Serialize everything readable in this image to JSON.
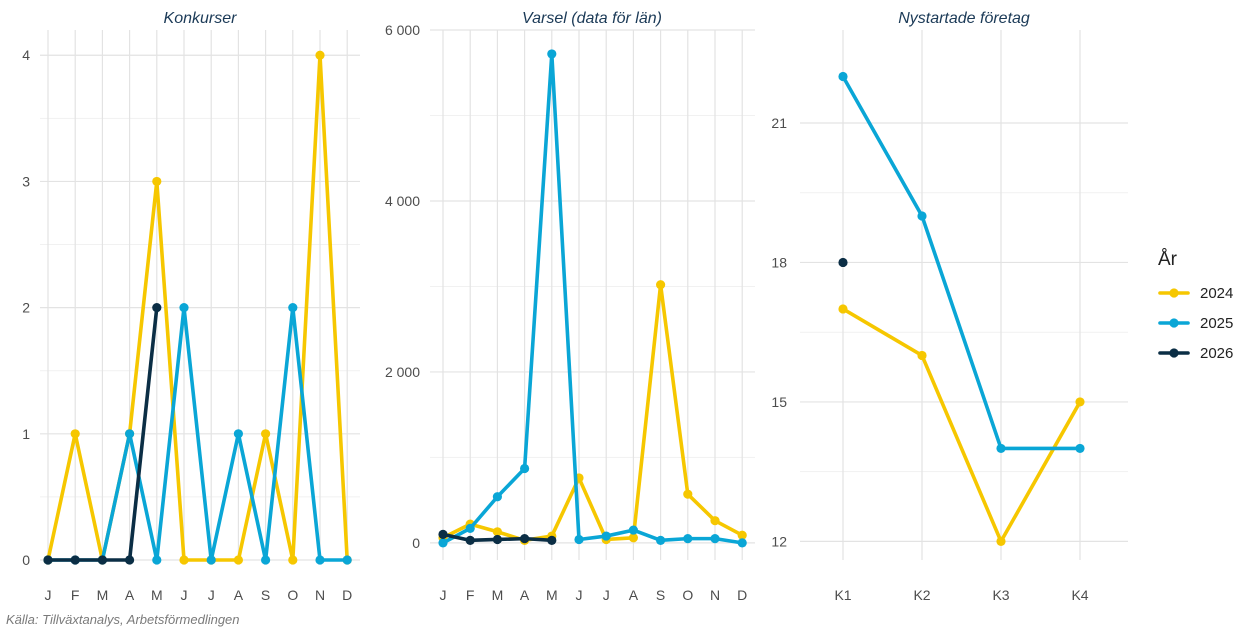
{
  "caption": "Källa: Tillväxtanalys, Arbetsförmedlingen",
  "legend": {
    "title": "År",
    "entries": [
      {
        "label": "2024",
        "color": "#F6C700"
      },
      {
        "label": "2025",
        "color": "#0AA6D6"
      },
      {
        "label": "2026",
        "color": "#0B2E45"
      }
    ]
  },
  "chart_data": [
    {
      "type": "line",
      "title": "Konkurser",
      "categories": [
        "J",
        "F",
        "M",
        "A",
        "M",
        "J",
        "J",
        "A",
        "S",
        "O",
        "N",
        "D"
      ],
      "ylim": [
        0,
        4.2
      ],
      "yticks": [
        0,
        1,
        2,
        3,
        4
      ],
      "ytick_labels": [
        "0",
        "1",
        "2",
        "3",
        "4"
      ],
      "grid": true,
      "series": [
        {
          "name": "2024",
          "color": "#F6C700",
          "values": [
            0,
            1,
            0,
            1,
            3,
            0,
            0,
            0,
            1,
            0,
            4,
            0
          ]
        },
        {
          "name": "2025",
          "color": "#0AA6D6",
          "values": [
            0,
            0,
            0,
            1,
            0,
            2,
            0,
            1,
            0,
            2,
            0,
            0
          ]
        },
        {
          "name": "2026",
          "color": "#0B2E45",
          "values": [
            0,
            0,
            0,
            0,
            2,
            null,
            null,
            null,
            null,
            null,
            null,
            null
          ]
        }
      ]
    },
    {
      "type": "line",
      "title": "Varsel (data för län)",
      "categories": [
        "J",
        "F",
        "M",
        "A",
        "M",
        "J",
        "J",
        "A",
        "S",
        "O",
        "N",
        "D"
      ],
      "ylim": [
        -200,
        6000
      ],
      "yticks": [
        0,
        2000,
        4000,
        6000
      ],
      "ytick_labels": [
        "0",
        "2 000",
        "4 000",
        "6 000"
      ],
      "grid": true,
      "series": [
        {
          "name": "2024",
          "color": "#F6C700",
          "values": [
            60,
            220,
            130,
            30,
            80,
            760,
            40,
            60,
            3020,
            570,
            260,
            90
          ]
        },
        {
          "name": "2025",
          "color": "#0AA6D6",
          "values": [
            0,
            170,
            540,
            870,
            5720,
            40,
            80,
            150,
            30,
            50,
            50,
            0
          ]
        },
        {
          "name": "2026",
          "color": "#0B2E45",
          "values": [
            100,
            30,
            40,
            50,
            30,
            null,
            null,
            null,
            null,
            null,
            null,
            null
          ]
        }
      ]
    },
    {
      "type": "line",
      "title": "Nystartade företag",
      "categories": [
        "K1",
        "K2",
        "K3",
        "K4"
      ],
      "ylim": [
        11.6,
        23.0
      ],
      "yticks": [
        12,
        15,
        18,
        21
      ],
      "ytick_labels": [
        "12",
        "15",
        "18",
        "21"
      ],
      "grid": true,
      "legend_position": "right",
      "series": [
        {
          "name": "2024",
          "color": "#F6C700",
          "values": [
            17,
            16,
            12,
            15
          ]
        },
        {
          "name": "2025",
          "color": "#0AA6D6",
          "values": [
            22,
            19,
            14,
            14
          ]
        },
        {
          "name": "2026",
          "color": "#0B2E45",
          "values": [
            18,
            null,
            null,
            null
          ]
        }
      ]
    }
  ]
}
